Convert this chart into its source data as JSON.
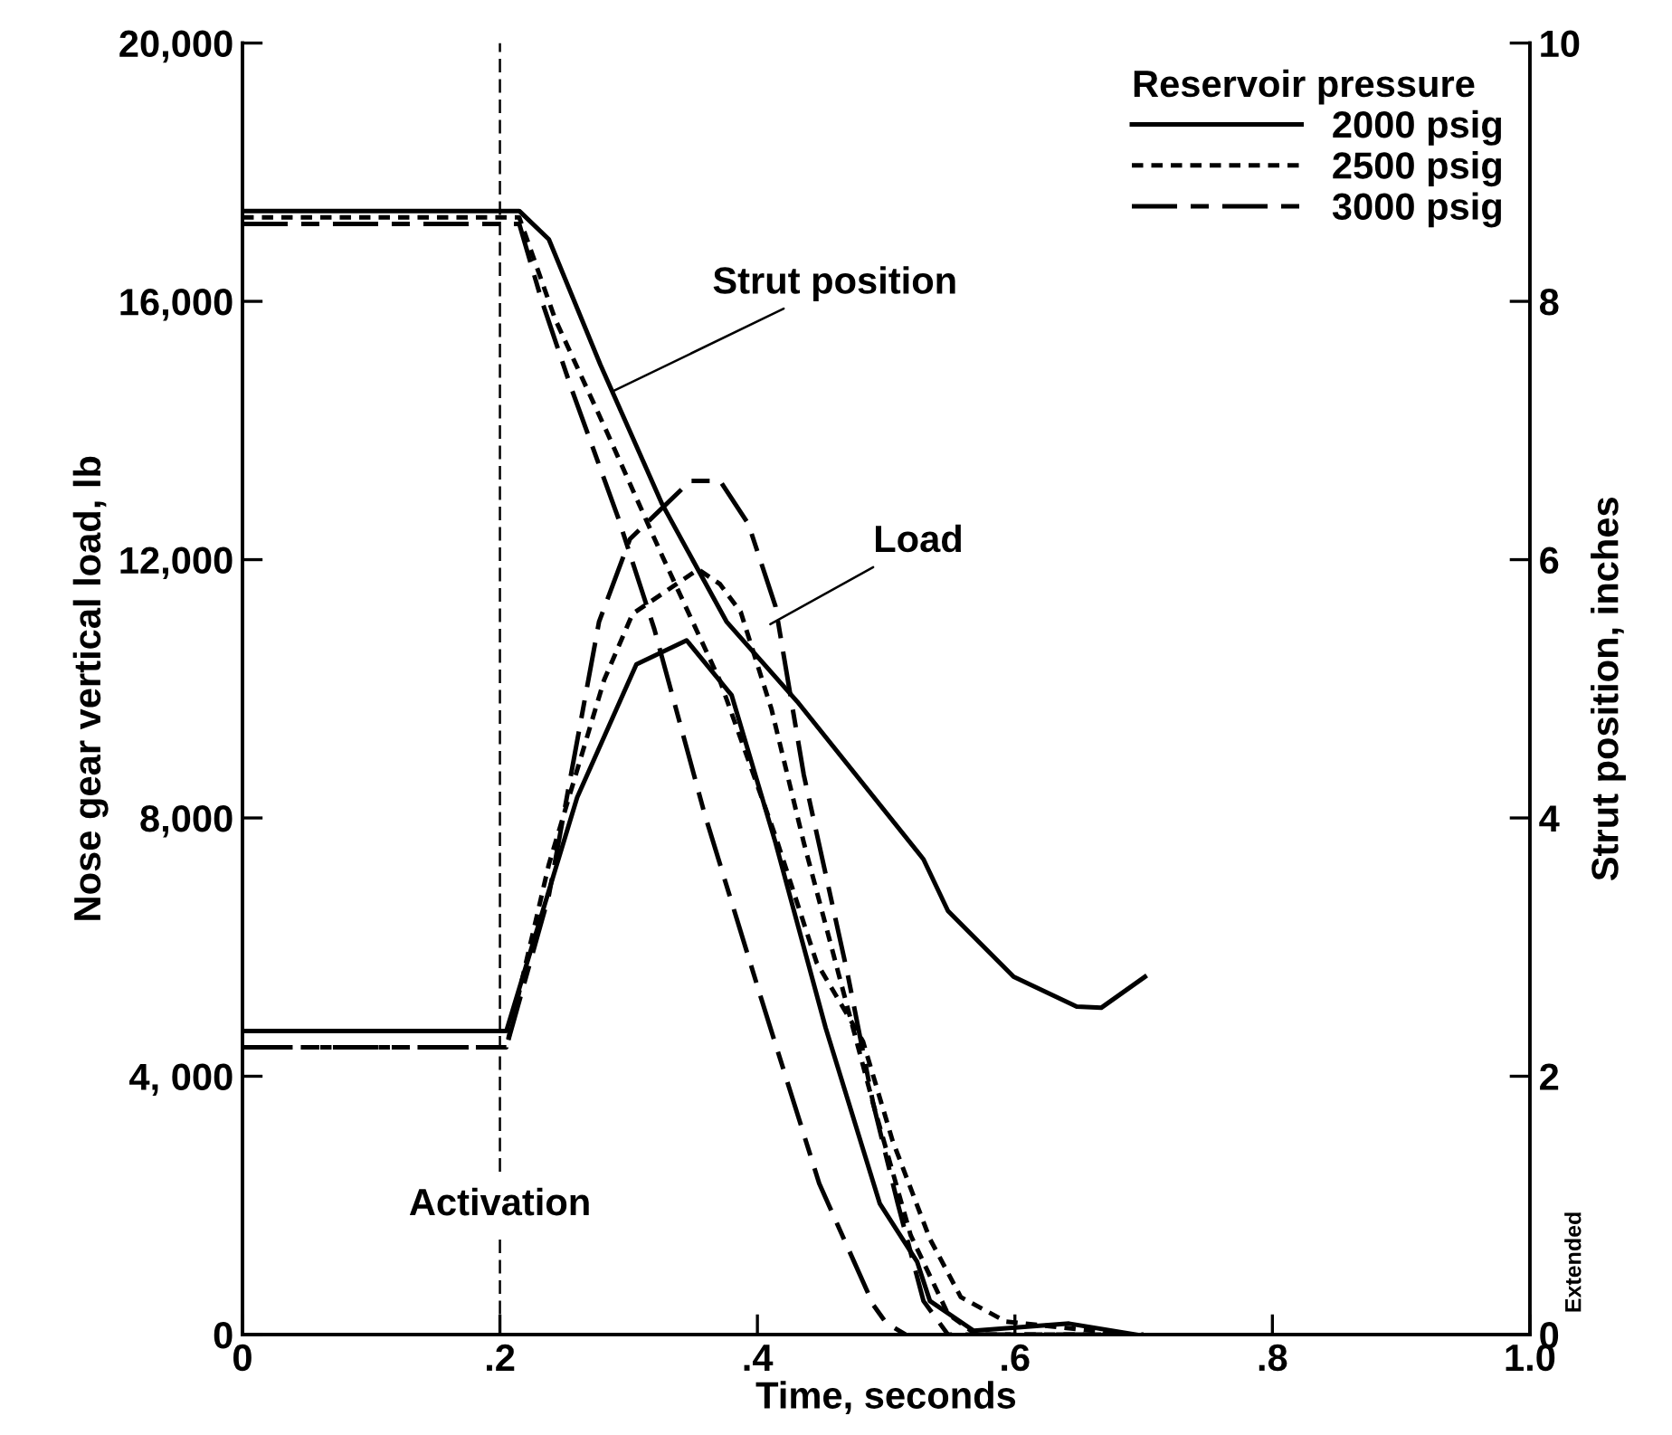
{
  "chart_data": {
    "type": "line",
    "xlabel": "Time, seconds",
    "ylabel": "Nose gear vertical load, lb",
    "y2label": "Strut position, inches",
    "legend_title": "Reservoir pressure",
    "legend": "top right",
    "grid": false,
    "xlim": [
      0,
      1.0
    ],
    "xticks": [
      0,
      {
        "value": 0.2,
        "label": ".2"
      },
      {
        "value": 0.4,
        "label": ".4"
      },
      {
        "value": 0.6,
        "label": ".6"
      },
      {
        "value": 0.8,
        "label": ".8"
      },
      {
        "value": 1.0,
        "label": "1.0"
      }
    ],
    "ylim": [
      0,
      20000
    ],
    "yticks": [
      0,
      {
        "value": 4000,
        "label": "4, 000"
      },
      {
        "value": 8000,
        "label": "8,000"
      },
      {
        "value": 12000,
        "label": "12,000"
      },
      {
        "value": 16000,
        "label": "16,000"
      },
      {
        "value": 20000,
        "label": "20,000"
      }
    ],
    "y2lim": [
      0,
      10
    ],
    "y2ticks": [
      0,
      2,
      4,
      6,
      8,
      10
    ],
    "ref_lines": [
      {
        "axis": "x",
        "value": 0.2,
        "label": "Activation",
        "line_style": "dashed",
        "color": "#000000"
      }
    ],
    "annotations": [
      {
        "text": "Strut position",
        "x": 0.287,
        "y": 14600
      },
      {
        "text": "Load",
        "x": 0.41,
        "y": 11000
      },
      "Extended"
    ],
    "series": [
      {
        "name": "2000 psig",
        "color": "#000000",
        "line_style": "solid",
        "x": [
          0,
          0.205,
          0.26,
          0.306,
          0.345,
          0.38,
          0.414,
          0.453,
          0.495,
          0.524,
          0.534,
          0.568,
          0.642,
          0.694
        ],
        "values": [
          4700,
          4700,
          8320,
          10380,
          10750,
          9900,
          7620,
          4750,
          2030,
          1130,
          520,
          60,
          170,
          0
        ]
      },
      {
        "name": "2500 psig",
        "color": "#000000",
        "line_style": "dotted",
        "x": [
          0,
          0.205,
          0.238,
          0.281,
          0.303,
          0.354,
          0.371,
          0.387,
          0.411,
          0.436,
          0.463,
          0.49,
          0.519,
          0.548,
          0.57,
          0.7
        ],
        "values": [
          4450,
          4450,
          7280,
          10140,
          11160,
          11850,
          11620,
          11190,
          9680,
          7620,
          5590,
          3570,
          1540,
          320,
          0,
          0
        ]
      },
      {
        "name": "3000 psig",
        "color": "#000000",
        "line_style": "dashed",
        "x": [
          0,
          0.205,
          0.238,
          0.277,
          0.301,
          0.348,
          0.371,
          0.393,
          0.414,
          0.436,
          0.47,
          0.49,
          0.509,
          0.529,
          0.548,
          0.7
        ],
        "values": [
          4450,
          4450,
          6800,
          11040,
          12320,
          13220,
          13220,
          12550,
          11280,
          8670,
          5590,
          3570,
          2030,
          520,
          0,
          0
        ]
      },
      {
        "color": "#000000",
        "line_style": "solid",
        "axis": "y2",
        "x": [
          0,
          0.215,
          0.238,
          0.278,
          0.326,
          0.376,
          0.431,
          0.529,
          0.548,
          0.599,
          0.648,
          0.667,
          0.701
        ],
        "values": [
          8.7,
          8.7,
          8.48,
          7.51,
          6.43,
          5.52,
          4.9,
          3.68,
          3.28,
          2.77,
          2.54,
          2.53,
          2.77
        ]
      },
      {
        "color": "#000000",
        "line_style": "dotted",
        "axis": "y2",
        "x": [
          0,
          0.215,
          0.243,
          0.283,
          0.326,
          0.371,
          0.414,
          0.446,
          0.482,
          0.505,
          0.534,
          0.558,
          0.593,
          0.69
        ],
        "values": [
          8.65,
          8.65,
          7.86,
          6.99,
          6.03,
          5.06,
          3.86,
          2.88,
          2.27,
          1.5,
          0.74,
          0.29,
          0.1,
          0
        ]
      },
      {
        "color": "#000000",
        "line_style": "dashed",
        "axis": "y2",
        "x": [
          0,
          0.215,
          0.232,
          0.255,
          0.292,
          0.32,
          0.359,
          0.403,
          0.448,
          0.49,
          0.5,
          0.515
        ],
        "values": [
          8.6,
          8.6,
          8.02,
          7.34,
          6.32,
          5.46,
          4.03,
          2.6,
          1.17,
          0.23,
          0.09,
          0
        ]
      }
    ]
  }
}
